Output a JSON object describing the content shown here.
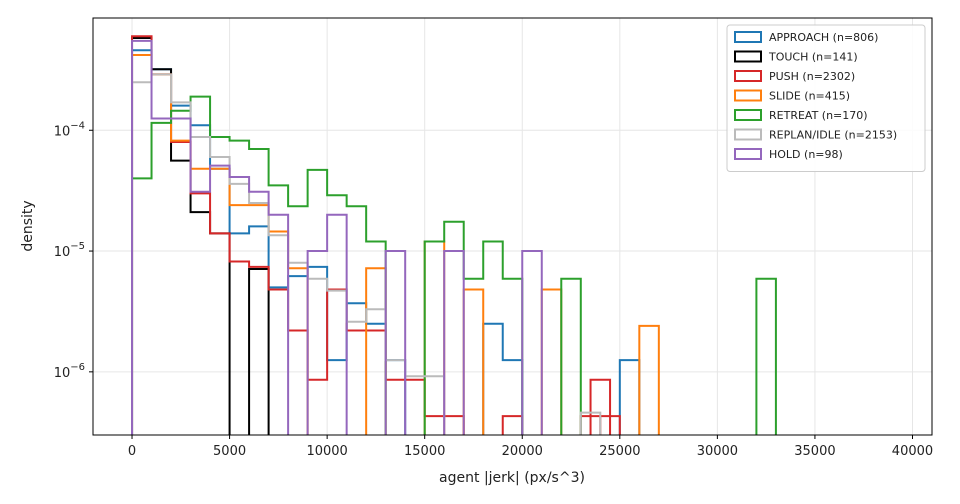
{
  "chart_data": {
    "type": "histogram-step",
    "xlabel": "agent |jerk| (px/s^3)",
    "ylabel": "density",
    "yscale": "log",
    "xlim": [
      -2000,
      41000
    ],
    "ylim": [
      3e-07,
      0.00085
    ],
    "x_ticks": [
      0,
      5000,
      10000,
      15000,
      20000,
      25000,
      30000,
      35000,
      40000
    ],
    "y_ticks": [
      {
        "value": 1e-06,
        "mantissa": "10",
        "exp": "−6"
      },
      {
        "value": 1e-05,
        "mantissa": "10",
        "exp": "−5"
      },
      {
        "value": 0.0001,
        "mantissa": "10",
        "exp": "−4"
      }
    ],
    "grid": true,
    "legend_position": "top-right",
    "bin_width": 1000,
    "series": [
      {
        "name": "APPROACH (n=806)",
        "color": "#1f77b4",
        "bins": [
          [
            0,
            0.00046
          ],
          [
            1000,
            0.00032
          ],
          [
            2000,
            0.00016
          ],
          [
            3000,
            0.00011
          ],
          [
            4000,
            4.8e-05
          ],
          [
            5000,
            1.4e-05
          ],
          [
            6000,
            1.6e-05
          ],
          [
            7000,
            5e-06
          ],
          [
            8000,
            6.2e-06
          ],
          [
            9000,
            7.4e-06
          ],
          [
            10000,
            1.25e-06
          ],
          [
            11000,
            3.7e-06
          ],
          [
            12000,
            2.5e-06
          ],
          [
            13000,
            1.25e-06
          ],
          [
            18000,
            2.5e-06
          ],
          [
            19000,
            1.25e-06
          ],
          [
            25000,
            1.25e-06
          ]
        ]
      },
      {
        "name": "TOUCH (n=141)",
        "color": "#000000",
        "bins": [
          [
            0,
            0.00058
          ],
          [
            1000,
            0.00032
          ],
          [
            2000,
            5.6e-05
          ],
          [
            3000,
            2.1e-05
          ],
          [
            4000,
            1.4e-05
          ],
          [
            6000,
            7.1e-06
          ]
        ]
      },
      {
        "name": "PUSH (n=2302)",
        "color": "#d62728",
        "bins": [
          [
            0,
            0.0006
          ],
          [
            1000,
            0.00029
          ],
          [
            2000,
            8e-05
          ],
          [
            3000,
            3e-05
          ],
          [
            4000,
            1.4e-05
          ],
          [
            5000,
            8.2e-06
          ],
          [
            6000,
            7.4e-06
          ],
          [
            7000,
            4.8e-06
          ],
          [
            8000,
            2.2e-06
          ],
          [
            9000,
            8.6e-07
          ],
          [
            10000,
            4.8e-06
          ],
          [
            11000,
            2.2e-06
          ],
          [
            12000,
            2.2e-06
          ],
          [
            13000,
            8.6e-07
          ],
          [
            14000,
            8.6e-07
          ],
          [
            15000,
            4.3e-07
          ],
          [
            16000,
            4.3e-07
          ],
          [
            19000,
            4.3e-07
          ],
          [
            23000,
            4.3e-07
          ],
          [
            23500,
            8.6e-07
          ],
          [
            24000,
            4.3e-07
          ]
        ]
      },
      {
        "name": "SLIDE (n=415)",
        "color": "#ff7f0e",
        "bins": [
          [
            0,
            0.00042
          ],
          [
            1000,
            0.00029
          ],
          [
            2000,
            8.2e-05
          ],
          [
            3000,
            4.8e-05
          ],
          [
            4000,
            4.8e-05
          ],
          [
            5000,
            2.4e-05
          ],
          [
            6000,
            2.4e-05
          ],
          [
            7000,
            1.45e-05
          ],
          [
            8000,
            7.2e-06
          ],
          [
            12000,
            7.2e-06
          ],
          [
            15000,
            1.2e-05
          ],
          [
            17000,
            4.8e-06
          ],
          [
            21000,
            4.8e-06
          ],
          [
            26000,
            2.4e-06
          ]
        ]
      },
      {
        "name": "RETREAT (n=170)",
        "color": "#2ca02c",
        "bins": [
          [
            0,
            4e-05
          ],
          [
            1000,
            0.000115
          ],
          [
            2000,
            0.000145
          ],
          [
            3000,
            0.00019
          ],
          [
            4000,
            8.8e-05
          ],
          [
            5000,
            8.2e-05
          ],
          [
            6000,
            7e-05
          ],
          [
            7000,
            3.5e-05
          ],
          [
            8000,
            2.35e-05
          ],
          [
            9000,
            4.7e-05
          ],
          [
            10000,
            2.9e-05
          ],
          [
            11000,
            2.35e-05
          ],
          [
            12000,
            1.2e-05
          ],
          [
            15000,
            1.2e-05
          ],
          [
            16000,
            1.75e-05
          ],
          [
            17000,
            5.9e-06
          ],
          [
            18000,
            1.2e-05
          ],
          [
            19000,
            5.9e-06
          ],
          [
            22000,
            5.9e-06
          ],
          [
            32000,
            5.9e-06
          ]
        ]
      },
      {
        "name": "REPLAN/IDLE (n=2153)",
        "color": "#bbbbbb",
        "bins": [
          [
            0,
            0.00025
          ],
          [
            1000,
            0.00029
          ],
          [
            2000,
            0.00017
          ],
          [
            3000,
            8.8e-05
          ],
          [
            4000,
            6e-05
          ],
          [
            5000,
            3.6e-05
          ],
          [
            6000,
            2.5e-05
          ],
          [
            7000,
            1.35e-05
          ],
          [
            8000,
            8e-06
          ],
          [
            9000,
            5.9e-06
          ],
          [
            10000,
            4.7e-06
          ],
          [
            11000,
            2.6e-06
          ],
          [
            12000,
            3.3e-06
          ],
          [
            13000,
            1.25e-06
          ],
          [
            14000,
            9.2e-07
          ],
          [
            15000,
            9.2e-07
          ],
          [
            23000,
            4.6e-07
          ]
        ]
      },
      {
        "name": "HOLD (n=98)",
        "color": "#9467bd",
        "bins": [
          [
            0,
            0.00055
          ],
          [
            1000,
            0.000125
          ],
          [
            2000,
            0.000125
          ],
          [
            3000,
            3.1e-05
          ],
          [
            4000,
            5.1e-05
          ],
          [
            5000,
            4.1e-05
          ],
          [
            6000,
            3.1e-05
          ],
          [
            7000,
            2e-05
          ],
          [
            9000,
            1e-05
          ],
          [
            10000,
            2e-05
          ],
          [
            13000,
            1e-05
          ],
          [
            16000,
            1e-05
          ],
          [
            20000,
            1e-05
          ]
        ]
      }
    ]
  }
}
